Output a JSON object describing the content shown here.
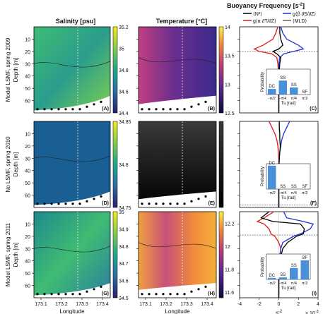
{
  "chart_data": {
    "type": "heatmap",
    "header": {
      "salinity_title": "Salinity [psu]",
      "temperature_title": "Temperature [°C]",
      "buoyancy_title": "Buoyancy Frequency [s",
      "buoyancy_title_sup": "-2",
      "buoyancy_title_end": "]"
    },
    "row_labels": [
      {
        "line1": "Model LSMF, spring 2009",
        "line2": "Depth [m]"
      },
      {
        "line1": "No LSMF, spring 2010",
        "line2": "Depth [m]"
      },
      {
        "line1": "Model LSMF, spring 2011",
        "line2": "Depth [m]"
      }
    ],
    "panel_letters": [
      "(A)",
      "(B)",
      "(C)",
      "(D)",
      "(E)",
      "(F)",
      "(G)",
      "(H)",
      "(I)"
    ],
    "depth_ticks": [
      "10",
      "20",
      "30",
      "40",
      "50",
      "60"
    ],
    "depth_range": [
      0,
      70
    ],
    "longitude_ticks": [
      "173.1",
      "173.2",
      "173.3",
      "173.4"
    ],
    "longitude_label": "Longitude",
    "salinity_colorbars": [
      {
        "ticks": [
          "35.2",
          "35",
          "34.8",
          "34.6",
          "34.4"
        ],
        "range": [
          34.4,
          35.2
        ]
      },
      {
        "ticks": [
          "34.85",
          "34.8",
          "34.75"
        ],
        "range": [
          34.75,
          34.85
        ]
      },
      {
        "ticks": [
          "35",
          "34.9",
          "34.8",
          "34.7",
          "34.6",
          "34.5"
        ],
        "range": [
          34.5,
          35.0
        ]
      }
    ],
    "temperature_colorbars": [
      {
        "ticks": [
          "14",
          "13.5",
          "13",
          "12.5"
        ],
        "range": [
          12.5,
          14.0
        ]
      },
      {
        "ticks": [],
        "range": null
      },
      {
        "ticks": [
          "12.2",
          "12",
          "11.8",
          "11.6"
        ],
        "range": [
          11.55,
          12.3
        ]
      }
    ],
    "buoyancy": {
      "x_ticks": [
        "-4",
        "-2",
        "0",
        "2",
        "4"
      ],
      "x_range": [
        -4,
        4
      ],
      "x_unit": "s",
      "x_unit_sup": "-2",
      "x_scale": "× 10",
      "x_scale_sup": "-3",
      "legend": [
        {
          "label": "⟨N²⟩",
          "color": "#000000"
        },
        {
          "label": "g⟨β ∂S/∂Z⟩",
          "color": "#1f2fd6"
        },
        {
          "label": "g⟨α ∂T/∂Z⟩",
          "color": "#e01b1b"
        },
        {
          "label": "⟨MLD⟩",
          "color": "#666666"
        }
      ],
      "profiles": [
        {
          "depth": [
            0,
            5,
            10,
            15,
            18,
            20,
            22,
            25,
            30,
            40,
            50,
            60,
            70
          ],
          "N2": [
            0.1,
            0.1,
            0.2,
            0.4,
            0.0,
            -0.6,
            -0.2,
            0.2,
            0.1,
            0.0,
            0.0,
            0.0,
            0.0
          ],
          "salt": [
            0.2,
            0.4,
            0.8,
            2.0,
            2.5,
            1.5,
            0.5,
            0.1,
            0.0,
            0.0,
            0.0,
            0.0,
            0.0
          ],
          "temp": [
            -0.1,
            -0.3,
            -0.6,
            -1.6,
            -2.5,
            -2.0,
            -0.7,
            -0.2,
            -0.1,
            0.0,
            0.0,
            0.0,
            0.0
          ],
          "mld": 20
        },
        {
          "depth": [
            0,
            5,
            10,
            15,
            20,
            25,
            30,
            40,
            50,
            60,
            70
          ],
          "N2": [
            0.05,
            0.05,
            0.1,
            0.1,
            0.15,
            0.1,
            0.05,
            0.0,
            0.0,
            0.0,
            0.0
          ],
          "salt": [
            1.1,
            0.8,
            0.5,
            0.3,
            0.2,
            0.1,
            0.05,
            0.0,
            0.0,
            0.0,
            0.0
          ],
          "temp": [
            -1.0,
            -0.7,
            -0.4,
            -0.2,
            -0.1,
            -0.05,
            0.0,
            0.0,
            0.0,
            0.0,
            0.0
          ],
          "mld": 68
        },
        {
          "depth": [
            0,
            5,
            8,
            10,
            14,
            18,
            20,
            25,
            30,
            40,
            50,
            60,
            70
          ],
          "N2": [
            -1.0,
            -1.8,
            -0.6,
            2.2,
            2.6,
            2.5,
            1.8,
            0.9,
            0.4,
            0.1,
            0.0,
            0.0,
            0.0
          ],
          "salt": [
            0.5,
            0.8,
            2.5,
            3.5,
            3.2,
            2.2,
            1.5,
            0.4,
            0.2,
            0.0,
            0.0,
            0.0,
            0.0
          ],
          "temp": [
            -0.5,
            -1.5,
            -2.2,
            -1.5,
            -1.0,
            -0.8,
            -0.4,
            0.0,
            0.2,
            0.1,
            0.0,
            0.0,
            0.0
          ],
          "mld": 19
        }
      ]
    },
    "insets": [
      {
        "categories": [
          "DC",
          "SS",
          "SS",
          "SF"
        ],
        "values": [
          0.22,
          0.55,
          0.28,
          0.0
        ],
        "ylabel": "Probability",
        "xlabel": "Tu [rad]",
        "x_ticks": [
          "-π/2",
          "-π/4",
          "π/4",
          "π/2"
        ]
      },
      {
        "categories": [
          "DC",
          "SS",
          "SS",
          "SF"
        ],
        "values": [
          0.92,
          0.0,
          0.0,
          0.0
        ],
        "ylabel": "Probability",
        "xlabel": "Tu [rad]",
        "x_ticks": [
          "-π/2",
          "-π/4",
          "π/4",
          "π/2"
        ]
      },
      {
        "categories": [
          "DC",
          "SS",
          "SS",
          "SF"
        ],
        "values": [
          0.06,
          0.08,
          0.45,
          0.75
        ],
        "ylabel": "Probability",
        "xlabel": "Tu [rad]",
        "x_ticks": [
          "-π/2",
          "-π/4",
          "π/4",
          "π/2"
        ]
      }
    ],
    "series_colors": {
      "N2": "#000000",
      "salt": "#1f2fd6",
      "temp": "#e01b1b"
    }
  }
}
